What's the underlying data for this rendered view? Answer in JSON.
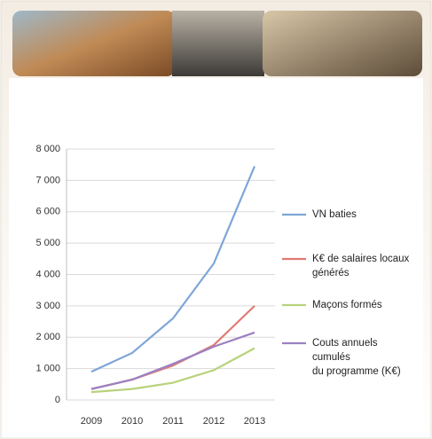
{
  "chart_data": {
    "type": "line",
    "categories": [
      "2009",
      "2010",
      "2011",
      "2012",
      "2013"
    ],
    "ylim": [
      0,
      8000
    ],
    "yticks": [
      {
        "value": 0,
        "label": "0"
      },
      {
        "value": 1000,
        "label": "1 000"
      },
      {
        "value": 2000,
        "label": "2 000"
      },
      {
        "value": 3000,
        "label": "3 000"
      },
      {
        "value": 4000,
        "label": "4 000"
      },
      {
        "value": 5000,
        "label": "5 000"
      },
      {
        "value": 6000,
        "label": "6 000"
      },
      {
        "value": 7000,
        "label": "7 000"
      },
      {
        "value": 8000,
        "label": "8 000"
      }
    ],
    "grid": true,
    "legend": "right",
    "series": [
      {
        "name": "VN baties",
        "color": "#7ea6d8",
        "values": [
          900,
          1500,
          2600,
          4350,
          7450
        ]
      },
      {
        "name": "K€ de salaires locaux\ngénérés",
        "color": "#e07a72",
        "values": [
          350,
          650,
          1100,
          1750,
          3000
        ]
      },
      {
        "name": "Maçons formés",
        "color": "#b8d27a",
        "values": [
          250,
          350,
          550,
          950,
          1650
        ]
      },
      {
        "name": "Couts annuels\ncumulés\ndu programme (K€)",
        "color": "#9c80c2",
        "values": [
          350,
          650,
          1150,
          1700,
          2150
        ]
      }
    ]
  }
}
